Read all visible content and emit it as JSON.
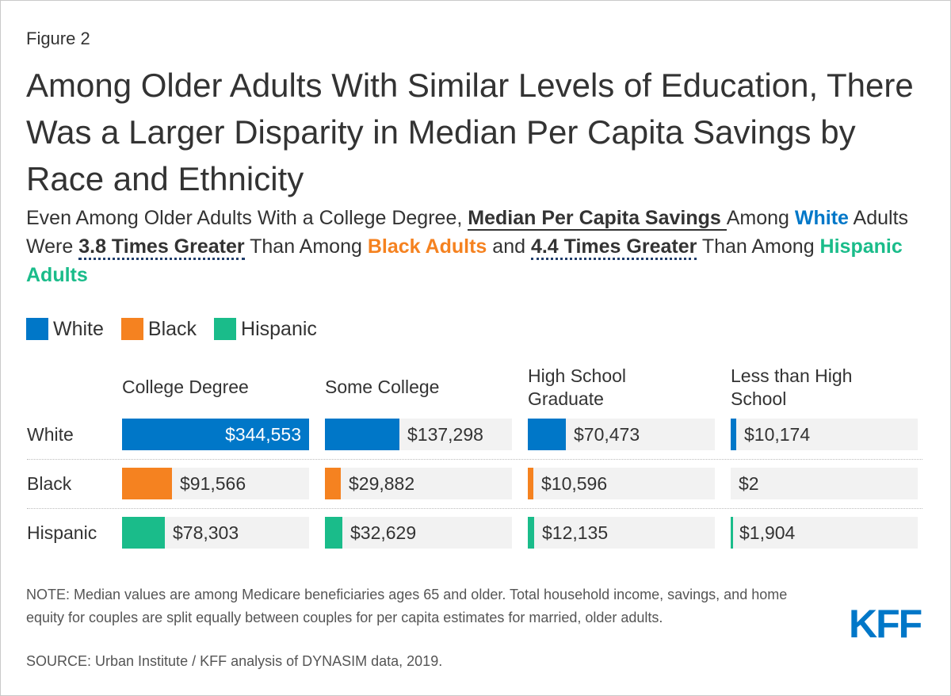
{
  "figure_label": "Figure 2",
  "title": "Among Older Adults With Similar Levels of Education, There Was a Larger Disparity in Median Per Capita Savings by Race and Ethnicity",
  "subtitle": {
    "p1": "Even Among Older Adults With a College Degree, ",
    "p2": "Median Per Capita Savings ",
    "p3": "Among ",
    "p4": "White",
    "p5": " Adults Were ",
    "p6": "3.8 Times Greater",
    "p7": " Than Among ",
    "p8": "Black Adults",
    "p9": " and ",
    "p10": "4.4 Times Greater",
    "p11": " Than Among ",
    "p12": "Hispanic Adults"
  },
  "legend": [
    {
      "label": "White",
      "color": "#0077c8"
    },
    {
      "label": "Black",
      "color": "#f58220"
    },
    {
      "label": "Hispanic",
      "color": "#1abc8a"
    }
  ],
  "chart_data": {
    "type": "bar",
    "orientation": "horizontal",
    "layout": "small-multiples",
    "categories": [
      "College Degree",
      "Some College",
      "High School Graduate",
      "Less than High School"
    ],
    "groups": [
      "White",
      "Black",
      "Hispanic"
    ],
    "series": [
      {
        "name": "White",
        "color": "#0077c8",
        "values": [
          344553,
          137298,
          70473,
          10174
        ],
        "labels": [
          "$344,553",
          "$137,298",
          "$70,473",
          "$10,174"
        ]
      },
      {
        "name": "Black",
        "color": "#f58220",
        "values": [
          91566,
          29882,
          10596,
          2
        ],
        "labels": [
          "$91,566",
          "$29,882",
          "$10,596",
          "$2"
        ]
      },
      {
        "name": "Hispanic",
        "color": "#1abc8a",
        "values": [
          78303,
          32629,
          12135,
          1904
        ],
        "labels": [
          "$78,303",
          "$32,629",
          "$12,135",
          "$1,904"
        ]
      }
    ],
    "column_max": [
      344553,
      344553,
      344553,
      344553
    ],
    "unit": "USD"
  },
  "footer": {
    "note": "NOTE: Median values are among Medicare beneficiaries ages 65 and older. Total household income, savings, and home equity for couples are split equally between couples for per capita estimates for married, older adults.",
    "source": "SOURCE: Urban Institute / KFF analysis of DYNASIM data, 2019.",
    "logo": "KFF"
  }
}
